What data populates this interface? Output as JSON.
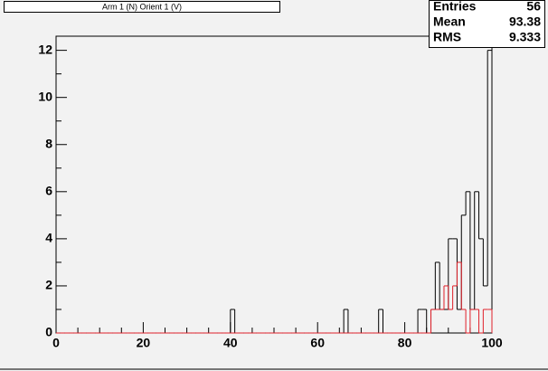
{
  "chart_data": {
    "type": "histogram",
    "title": "Arm 1 (N) Orient 1 (V)",
    "bins": [
      0,
      1,
      2,
      3,
      4,
      5,
      6,
      7,
      8,
      9,
      10,
      11,
      12,
      13,
      14,
      15,
      16,
      17,
      18,
      19,
      20,
      21,
      22,
      23,
      24,
      25,
      26,
      27,
      28,
      29,
      30,
      31,
      32,
      33,
      34,
      35,
      36,
      37,
      38,
      39,
      40,
      41,
      42,
      43,
      44,
      45,
      46,
      47,
      48,
      49,
      50,
      51,
      52,
      53,
      54,
      55,
      56,
      57,
      58,
      59,
      60,
      61,
      62,
      63,
      64,
      65,
      66,
      67,
      68,
      69,
      70,
      71,
      72,
      73,
      74,
      75,
      76,
      77,
      78,
      79,
      80,
      81,
      82,
      83,
      84,
      85,
      86,
      87,
      88,
      89,
      90,
      91,
      92,
      93,
      94,
      95,
      96,
      97,
      98,
      99,
      100
    ],
    "series": [
      {
        "color": "#000000",
        "values": [
          0,
          0,
          0,
          0,
          0,
          0,
          0,
          0,
          0,
          0,
          0,
          0,
          0,
          0,
          0,
          0,
          0,
          0,
          0,
          0,
          0,
          0,
          0,
          0,
          0,
          0,
          0,
          0,
          0,
          0,
          0,
          0,
          0,
          0,
          0,
          0,
          0,
          0,
          0,
          0,
          1,
          0,
          0,
          0,
          0,
          0,
          0,
          0,
          0,
          0,
          0,
          0,
          0,
          0,
          0,
          0,
          0,
          0,
          0,
          0,
          0,
          0,
          0,
          0,
          0,
          0,
          1,
          0,
          0,
          0,
          0,
          0,
          0,
          0,
          1,
          0,
          0,
          0,
          0,
          0,
          0,
          0,
          0,
          1,
          1,
          0,
          1,
          3,
          1,
          1,
          4,
          4,
          1,
          5,
          6,
          1,
          6,
          4,
          2,
          12
        ]
      },
      {
        "color": "#e0202a",
        "values": [
          0,
          0,
          0,
          0,
          0,
          0,
          0,
          0,
          0,
          0,
          0,
          0,
          0,
          0,
          0,
          0,
          0,
          0,
          0,
          0,
          0,
          0,
          0,
          0,
          0,
          0,
          0,
          0,
          0,
          0,
          0,
          0,
          0,
          0,
          0,
          0,
          0,
          0,
          0,
          0,
          0,
          0,
          0,
          0,
          0,
          0,
          0,
          0,
          0,
          0,
          0,
          0,
          0,
          0,
          0,
          0,
          0,
          0,
          0,
          0,
          0,
          0,
          0,
          0,
          0,
          0,
          0,
          0,
          0,
          0,
          0,
          0,
          0,
          0,
          0,
          0,
          0,
          0,
          0,
          0,
          0,
          0,
          0,
          0,
          0,
          0,
          1,
          1,
          1,
          2,
          1,
          2,
          3,
          1,
          0,
          1,
          1,
          0,
          1,
          1
        ]
      }
    ],
    "xlim": [
      0,
      100
    ],
    "xticks": [
      0,
      20,
      40,
      60,
      80,
      100
    ],
    "ylim": [
      0,
      12.6
    ],
    "yticks": [
      0,
      2,
      4,
      6,
      8,
      10,
      12
    ],
    "stats": [
      {
        "label": "Entries",
        "value": 56
      },
      {
        "label": "Mean",
        "value": 93.38
      },
      {
        "label": "RMS",
        "value": 9.333
      }
    ]
  }
}
